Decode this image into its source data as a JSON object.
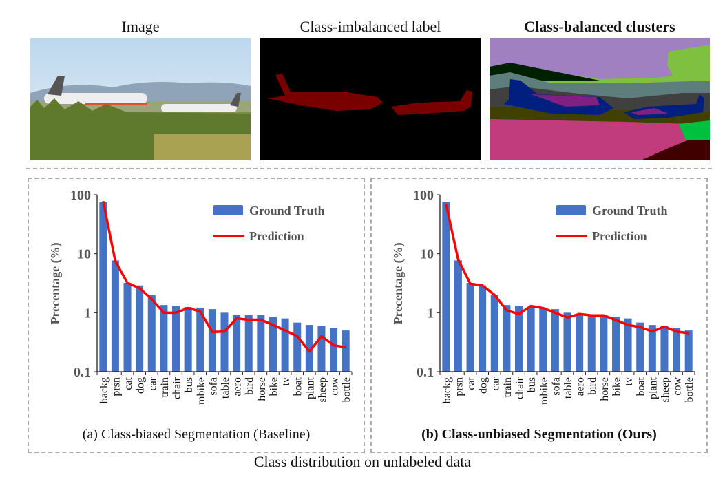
{
  "panels": {
    "image_title": "Image",
    "label_title": "Class-imbalanced label",
    "clusters_title": "Class-balanced clusters"
  },
  "figure_caption": "Class distribution on unlabeled data",
  "chart_data": [
    {
      "type": "bar",
      "caption": "(a) Class-biased Segmentation (Baseline)",
      "ylabel": "Precentage (%)",
      "yscale": "log",
      "ylim": [
        0.1,
        100
      ],
      "yticks": [
        "100",
        "10",
        "1",
        "0.1"
      ],
      "legend_position": "top-right",
      "categories": [
        "backg",
        "prsn",
        "cat",
        "dog",
        "car",
        "train",
        "chair",
        "bus",
        "mbike",
        "sofa",
        "table",
        "aero",
        "bird",
        "horse",
        "bike",
        "tv",
        "boat",
        "plant",
        "sheep",
        "cow",
        "bottle"
      ],
      "series": [
        {
          "name": "Ground Truth",
          "type": "bar",
          "color": "#4472c4",
          "values": [
            75,
            7.7,
            3.2,
            2.9,
            2.0,
            1.35,
            1.3,
            1.25,
            1.22,
            1.15,
            1.0,
            0.93,
            0.92,
            0.92,
            0.85,
            0.8,
            0.68,
            0.62,
            0.6,
            0.55,
            0.5
          ]
        },
        {
          "name": "Prediction",
          "type": "line",
          "color": "#ff0000",
          "values": [
            78,
            7.5,
            3.2,
            2.6,
            1.7,
            1.0,
            1.0,
            1.2,
            1.05,
            0.47,
            0.48,
            0.8,
            0.76,
            0.76,
            0.62,
            0.5,
            0.4,
            0.22,
            0.4,
            0.28,
            0.26
          ]
        }
      ]
    },
    {
      "type": "bar",
      "caption": "(b) Class-unbiased Segmentation (Ours)",
      "ylabel": "Precentage (%)",
      "yscale": "log",
      "ylim": [
        0.1,
        100
      ],
      "yticks": [
        "100",
        "10",
        "1",
        "0.1"
      ],
      "legend_position": "top-right",
      "categories": [
        "backg",
        "prsn",
        "cat",
        "dog",
        "car",
        "train",
        "chair",
        "bus",
        "mbike",
        "sofa",
        "table",
        "aero",
        "bird",
        "horse",
        "bike",
        "tv",
        "boat",
        "plant",
        "sheep",
        "cow",
        "bottle"
      ],
      "series": [
        {
          "name": "Ground Truth",
          "type": "bar",
          "color": "#4472c4",
          "values": [
            75,
            7.7,
            3.2,
            2.9,
            2.0,
            1.35,
            1.3,
            1.25,
            1.22,
            1.15,
            1.0,
            0.93,
            0.92,
            0.92,
            0.85,
            0.8,
            0.68,
            0.62,
            0.6,
            0.55,
            0.5
          ]
        },
        {
          "name": "Prediction",
          "type": "line",
          "color": "#ff0000",
          "values": [
            70,
            8,
            3.1,
            2.9,
            2.0,
            1.1,
            0.95,
            1.3,
            1.2,
            1.0,
            0.83,
            0.95,
            0.9,
            0.9,
            0.75,
            0.62,
            0.57,
            0.48,
            0.58,
            0.48,
            0.45
          ]
        }
      ]
    }
  ]
}
